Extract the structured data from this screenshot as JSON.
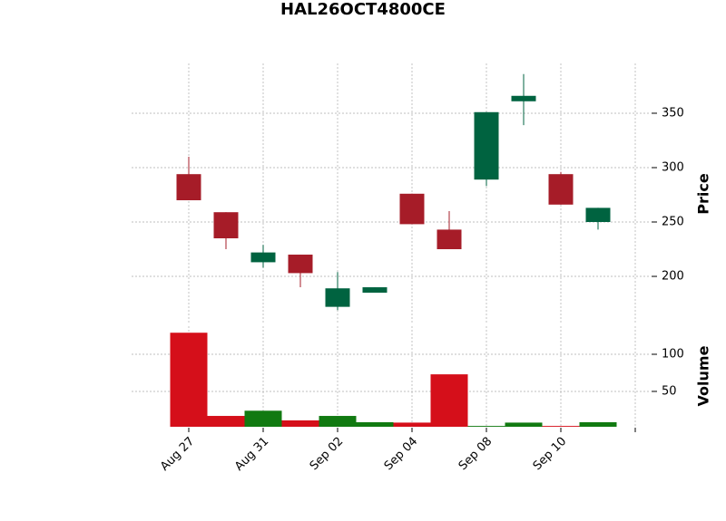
{
  "chart_data": {
    "type": "candlestick",
    "title": "HAL26OCT4800CE",
    "categories": [
      "Aug 27",
      null,
      "Aug 31",
      null,
      "Sep 02",
      null,
      "Sep 04",
      null,
      "Sep 08",
      null,
      "Sep 10",
      null
    ],
    "open": [
      294,
      259,
      213,
      220,
      172,
      185,
      276,
      243,
      289,
      361,
      294,
      250
    ],
    "high": [
      310,
      259,
      229,
      220,
      204,
      190,
      276,
      260,
      351,
      386,
      296,
      263
    ],
    "low": [
      270,
      225,
      208,
      190,
      169,
      185,
      248,
      225,
      283,
      339,
      266,
      243
    ],
    "close": [
      270,
      235,
      222,
      203,
      189,
      190,
      248,
      225,
      351,
      366,
      266,
      263
    ],
    "volume": [
      129,
      17,
      24,
      11,
      17,
      8.5,
      8,
      73,
      3.5,
      8,
      3.5,
      8.5
    ],
    "ylim": [
      156.7,
      395.8
    ],
    "yticks": [
      200,
      250,
      300,
      350
    ],
    "y_label": "Price",
    "volume_ylim": [
      2.4,
      137.8
    ],
    "volume_yticks": [
      50,
      100
    ],
    "volume_label": "Volume",
    "up_color": "#006340",
    "down_color": "#a61c28",
    "volume_up_color": "#117a11",
    "volume_down_color": "#d50f1a",
    "grid": true
  }
}
